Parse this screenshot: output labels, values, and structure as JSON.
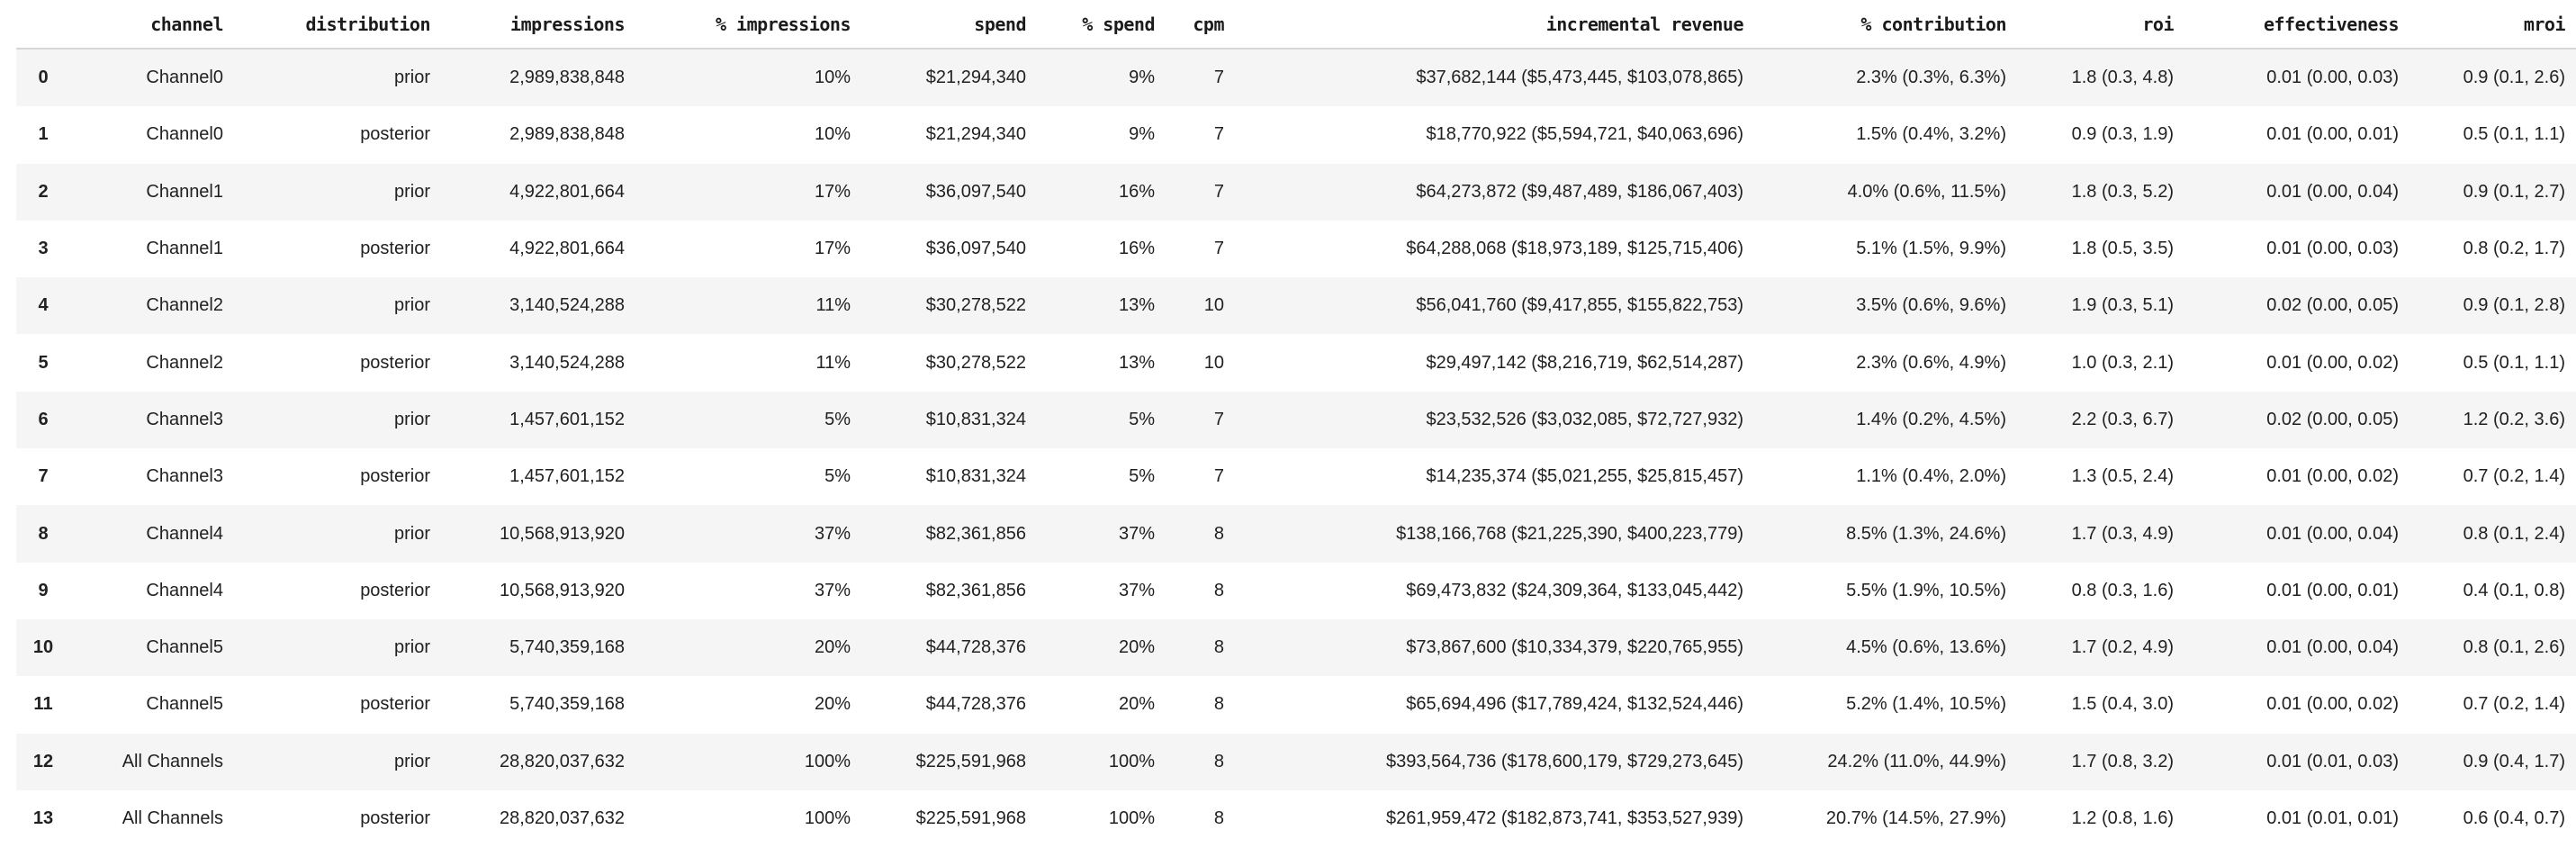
{
  "theme": {
    "background": "#ffffff",
    "text_color": "#212121",
    "stripe_color": "#f5f5f5",
    "header_border_color": "#d7d7d7"
  },
  "table": {
    "kind": "channel-summary-dataframe",
    "columns": [
      {
        "id": "index",
        "label": ""
      },
      {
        "id": "channel",
        "label": "channel"
      },
      {
        "id": "distribution",
        "label": "distribution"
      },
      {
        "id": "impressions",
        "label": "impressions"
      },
      {
        "id": "pct_impressions",
        "label": "% impressions"
      },
      {
        "id": "spend",
        "label": "spend"
      },
      {
        "id": "pct_spend",
        "label": "% spend"
      },
      {
        "id": "cpm",
        "label": "cpm"
      },
      {
        "id": "incremental_revenue",
        "label": "incremental revenue"
      },
      {
        "id": "pct_contribution",
        "label": "% contribution"
      },
      {
        "id": "roi",
        "label": "roi"
      },
      {
        "id": "effectiveness",
        "label": "effectiveness"
      },
      {
        "id": "mroi",
        "label": "mroi"
      }
    ],
    "rows": [
      {
        "index": "0",
        "channel": "Channel0",
        "distribution": "prior",
        "impressions": "2,989,838,848",
        "pct_impressions": "10%",
        "spend": "$21,294,340",
        "pct_spend": "9%",
        "cpm": "7",
        "incremental_revenue": "$37,682,144 ($5,473,445, $103,078,865)",
        "pct_contribution": "2.3% (0.3%, 6.3%)",
        "roi": "1.8 (0.3, 4.8)",
        "effectiveness": "0.01 (0.00, 0.03)",
        "mroi": "0.9 (0.1, 2.6)"
      },
      {
        "index": "1",
        "channel": "Channel0",
        "distribution": "posterior",
        "impressions": "2,989,838,848",
        "pct_impressions": "10%",
        "spend": "$21,294,340",
        "pct_spend": "9%",
        "cpm": "7",
        "incremental_revenue": "$18,770,922 ($5,594,721, $40,063,696)",
        "pct_contribution": "1.5% (0.4%, 3.2%)",
        "roi": "0.9 (0.3, 1.9)",
        "effectiveness": "0.01 (0.00, 0.01)",
        "mroi": "0.5 (0.1, 1.1)"
      },
      {
        "index": "2",
        "channel": "Channel1",
        "distribution": "prior",
        "impressions": "4,922,801,664",
        "pct_impressions": "17%",
        "spend": "$36,097,540",
        "pct_spend": "16%",
        "cpm": "7",
        "incremental_revenue": "$64,273,872 ($9,487,489, $186,067,403)",
        "pct_contribution": "4.0% (0.6%, 11.5%)",
        "roi": "1.8 (0.3, 5.2)",
        "effectiveness": "0.01 (0.00, 0.04)",
        "mroi": "0.9 (0.1, 2.7)"
      },
      {
        "index": "3",
        "channel": "Channel1",
        "distribution": "posterior",
        "impressions": "4,922,801,664",
        "pct_impressions": "17%",
        "spend": "$36,097,540",
        "pct_spend": "16%",
        "cpm": "7",
        "incremental_revenue": "$64,288,068 ($18,973,189, $125,715,406)",
        "pct_contribution": "5.1% (1.5%, 9.9%)",
        "roi": "1.8 (0.5, 3.5)",
        "effectiveness": "0.01 (0.00, 0.03)",
        "mroi": "0.8 (0.2, 1.7)"
      },
      {
        "index": "4",
        "channel": "Channel2",
        "distribution": "prior",
        "impressions": "3,140,524,288",
        "pct_impressions": "11%",
        "spend": "$30,278,522",
        "pct_spend": "13%",
        "cpm": "10",
        "incremental_revenue": "$56,041,760 ($9,417,855, $155,822,753)",
        "pct_contribution": "3.5% (0.6%, 9.6%)",
        "roi": "1.9 (0.3, 5.1)",
        "effectiveness": "0.02 (0.00, 0.05)",
        "mroi": "0.9 (0.1, 2.8)"
      },
      {
        "index": "5",
        "channel": "Channel2",
        "distribution": "posterior",
        "impressions": "3,140,524,288",
        "pct_impressions": "11%",
        "spend": "$30,278,522",
        "pct_spend": "13%",
        "cpm": "10",
        "incremental_revenue": "$29,497,142 ($8,216,719, $62,514,287)",
        "pct_contribution": "2.3% (0.6%, 4.9%)",
        "roi": "1.0 (0.3, 2.1)",
        "effectiveness": "0.01 (0.00, 0.02)",
        "mroi": "0.5 (0.1, 1.1)"
      },
      {
        "index": "6",
        "channel": "Channel3",
        "distribution": "prior",
        "impressions": "1,457,601,152",
        "pct_impressions": "5%",
        "spend": "$10,831,324",
        "pct_spend": "5%",
        "cpm": "7",
        "incremental_revenue": "$23,532,526 ($3,032,085, $72,727,932)",
        "pct_contribution": "1.4% (0.2%, 4.5%)",
        "roi": "2.2 (0.3, 6.7)",
        "effectiveness": "0.02 (0.00, 0.05)",
        "mroi": "1.2 (0.2, 3.6)"
      },
      {
        "index": "7",
        "channel": "Channel3",
        "distribution": "posterior",
        "impressions": "1,457,601,152",
        "pct_impressions": "5%",
        "spend": "$10,831,324",
        "pct_spend": "5%",
        "cpm": "7",
        "incremental_revenue": "$14,235,374 ($5,021,255, $25,815,457)",
        "pct_contribution": "1.1% (0.4%, 2.0%)",
        "roi": "1.3 (0.5, 2.4)",
        "effectiveness": "0.01 (0.00, 0.02)",
        "mroi": "0.7 (0.2, 1.4)"
      },
      {
        "index": "8",
        "channel": "Channel4",
        "distribution": "prior",
        "impressions": "10,568,913,920",
        "pct_impressions": "37%",
        "spend": "$82,361,856",
        "pct_spend": "37%",
        "cpm": "8",
        "incremental_revenue": "$138,166,768 ($21,225,390, $400,223,779)",
        "pct_contribution": "8.5% (1.3%, 24.6%)",
        "roi": "1.7 (0.3, 4.9)",
        "effectiveness": "0.01 (0.00, 0.04)",
        "mroi": "0.8 (0.1, 2.4)"
      },
      {
        "index": "9",
        "channel": "Channel4",
        "distribution": "posterior",
        "impressions": "10,568,913,920",
        "pct_impressions": "37%",
        "spend": "$82,361,856",
        "pct_spend": "37%",
        "cpm": "8",
        "incremental_revenue": "$69,473,832 ($24,309,364, $133,045,442)",
        "pct_contribution": "5.5% (1.9%, 10.5%)",
        "roi": "0.8 (0.3, 1.6)",
        "effectiveness": "0.01 (0.00, 0.01)",
        "mroi": "0.4 (0.1, 0.8)"
      },
      {
        "index": "10",
        "channel": "Channel5",
        "distribution": "prior",
        "impressions": "5,740,359,168",
        "pct_impressions": "20%",
        "spend": "$44,728,376",
        "pct_spend": "20%",
        "cpm": "8",
        "incremental_revenue": "$73,867,600 ($10,334,379, $220,765,955)",
        "pct_contribution": "4.5% (0.6%, 13.6%)",
        "roi": "1.7 (0.2, 4.9)",
        "effectiveness": "0.01 (0.00, 0.04)",
        "mroi": "0.8 (0.1, 2.6)"
      },
      {
        "index": "11",
        "channel": "Channel5",
        "distribution": "posterior",
        "impressions": "5,740,359,168",
        "pct_impressions": "20%",
        "spend": "$44,728,376",
        "pct_spend": "20%",
        "cpm": "8",
        "incremental_revenue": "$65,694,496 ($17,789,424, $132,524,446)",
        "pct_contribution": "5.2% (1.4%, 10.5%)",
        "roi": "1.5 (0.4, 3.0)",
        "effectiveness": "0.01 (0.00, 0.02)",
        "mroi": "0.7 (0.2, 1.4)"
      },
      {
        "index": "12",
        "channel": "All Channels",
        "distribution": "prior",
        "impressions": "28,820,037,632",
        "pct_impressions": "100%",
        "spend": "$225,591,968",
        "pct_spend": "100%",
        "cpm": "8",
        "incremental_revenue": "$393,564,736 ($178,600,179, $729,273,645)",
        "pct_contribution": "24.2% (11.0%, 44.9%)",
        "roi": "1.7 (0.8, 3.2)",
        "effectiveness": "0.01 (0.01, 0.03)",
        "mroi": "0.9 (0.4, 1.7)"
      },
      {
        "index": "13",
        "channel": "All Channels",
        "distribution": "posterior",
        "impressions": "28,820,037,632",
        "pct_impressions": "100%",
        "spend": "$225,591,968",
        "pct_spend": "100%",
        "cpm": "8",
        "incremental_revenue": "$261,959,472 ($182,873,741, $353,527,939)",
        "pct_contribution": "20.7% (14.5%, 27.9%)",
        "roi": "1.2 (0.8, 1.6)",
        "effectiveness": "0.01 (0.01, 0.01)",
        "mroi": "0.6 (0.4, 0.7)"
      }
    ]
  }
}
